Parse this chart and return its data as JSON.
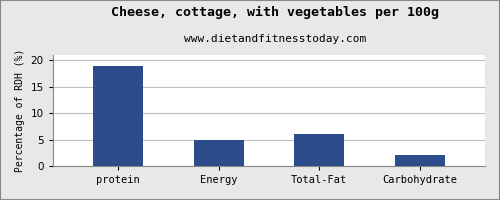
{
  "title": "Cheese, cottage, with vegetables per 100g",
  "subtitle": "www.dietandfitnesstoday.com",
  "categories": [
    "protein",
    "Energy",
    "Total-Fat",
    "Carbohydrate"
  ],
  "values": [
    19,
    5,
    6,
    2
  ],
  "bar_color": "#2b4d8c",
  "ylabel": "Percentage of RDH (%)",
  "ylim": [
    0,
    21
  ],
  "yticks": [
    0,
    5,
    10,
    15,
    20
  ],
  "background_color": "#e8e8e8",
  "plot_bg_color": "#ffffff",
  "title_fontsize": 9.5,
  "subtitle_fontsize": 8,
  "ylabel_fontsize": 7,
  "tick_fontsize": 7.5,
  "bar_width": 0.5,
  "bar_positions": [
    0,
    1,
    2,
    3
  ]
}
